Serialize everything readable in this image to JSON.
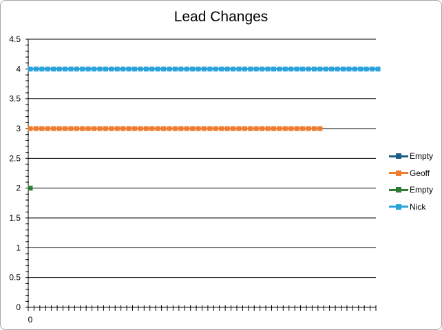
{
  "chart_data": {
    "type": "line",
    "title": "Lead Changes",
    "xlabel": "",
    "ylabel": "",
    "ylim": [
      0,
      4.5
    ],
    "yticks": [
      "0",
      "0.5",
      "1",
      "1.5",
      "2",
      "2.5",
      "3",
      "3.5",
      "4",
      "4.5"
    ],
    "xtick_labels": [
      "0"
    ],
    "x_count": 60,
    "grid": true,
    "legend_position": "right",
    "series": [
      {
        "name": "Empty",
        "color": "#1f5d86",
        "values": []
      },
      {
        "name": "Geoff",
        "color": "#ed7d31",
        "values": [
          3,
          3,
          3,
          3,
          3,
          3,
          3,
          3,
          3,
          3,
          3,
          3,
          3,
          3,
          3,
          3,
          3,
          3,
          3,
          3,
          3,
          3,
          3,
          3,
          3,
          3,
          3,
          3,
          3,
          3,
          3,
          3,
          3,
          3,
          3,
          3,
          3,
          3,
          3,
          3,
          3,
          3,
          3,
          3,
          3,
          3,
          3,
          3,
          3,
          3,
          3
        ]
      },
      {
        "name": "Empty",
        "color": "#2e7d32",
        "values": [
          2
        ]
      },
      {
        "name": "Nick",
        "color": "#2aa3dc",
        "values": [
          4,
          4,
          4,
          4,
          4,
          4,
          4,
          4,
          4,
          4,
          4,
          4,
          4,
          4,
          4,
          4,
          4,
          4,
          4,
          4,
          4,
          4,
          4,
          4,
          4,
          4,
          4,
          4,
          4,
          4,
          4,
          4,
          4,
          4,
          4,
          4,
          4,
          4,
          4,
          4,
          4,
          4,
          4,
          4,
          4,
          4,
          4,
          4,
          4,
          4,
          4,
          4,
          4,
          4,
          4,
          4,
          4,
          4,
          4,
          4,
          4
        ]
      }
    ]
  }
}
